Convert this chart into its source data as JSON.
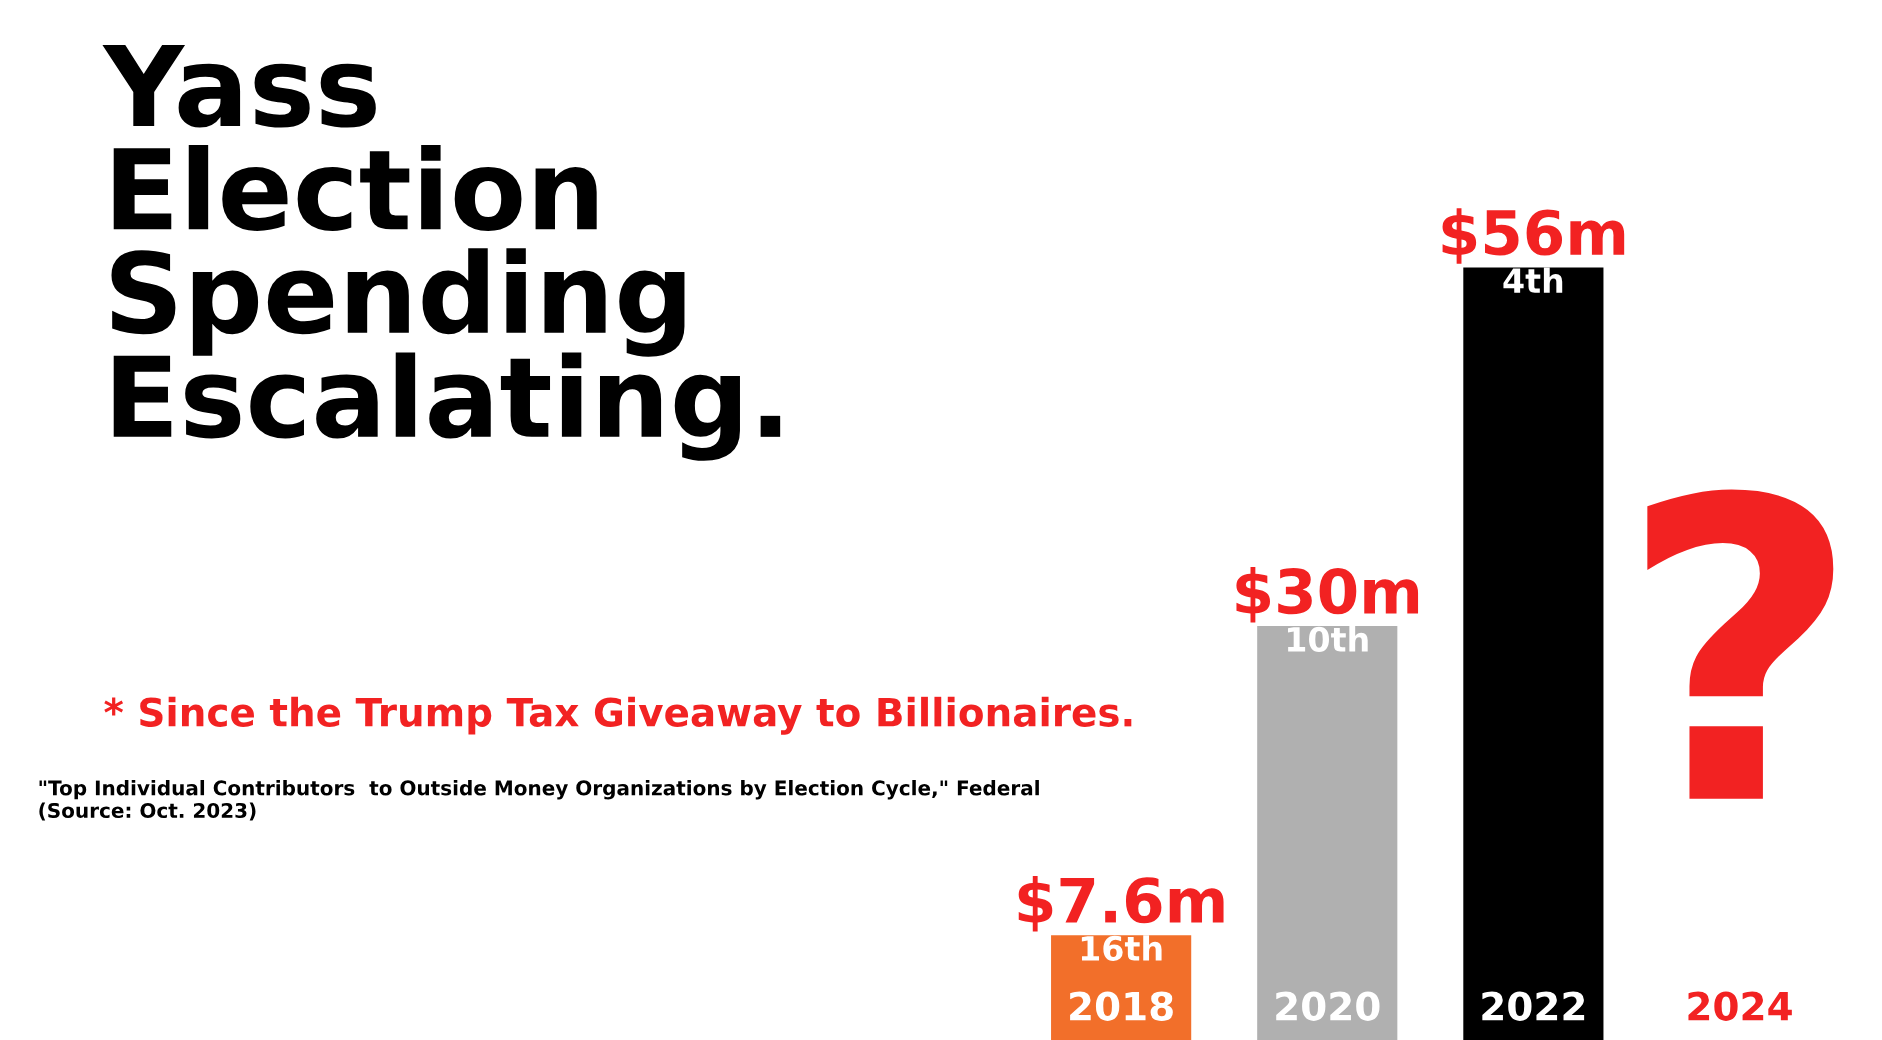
{
  "chart_data": {
    "type": "bar",
    "title": "Yass Election Spending Escalating.",
    "subtitle": "* Since the Trump Tax Giveaway to Billionaires.",
    "categories": [
      "2018",
      "2020",
      "2022",
      "2024"
    ],
    "values": [
      7.6,
      30,
      56,
      null
    ],
    "colors": [
      "#f26f2a",
      "#b0b0b0",
      "#000000",
      "#f22222"
    ],
    "value_labels": [
      "$7.6m",
      "$30m",
      "$56m",
      "?"
    ],
    "annotations": [
      {
        "text": "16th",
        "x": "2018",
        "y": 7.6
      },
      {
        "text": "10th",
        "x": "2020",
        "y": 30
      },
      {
        "text": "4th",
        "x": "2022",
        "y": 56
      },
      "\"Top Individual Contributors  to Outside Money Organizations by Election Cycle,\" Federal  (Source: Oct. 2023)"
    ],
    "legend": false
  }
}
